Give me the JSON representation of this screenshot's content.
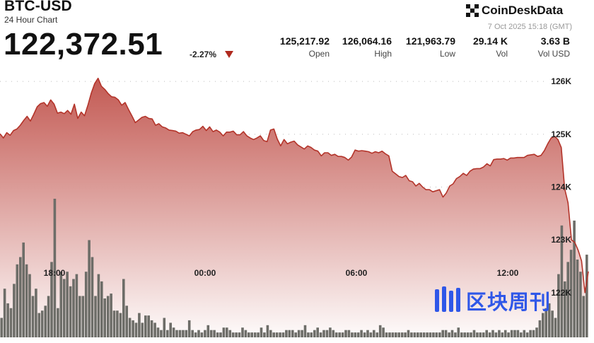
{
  "header": {
    "title": "BTC-USD",
    "subtitle": "24 Hour Chart",
    "price": "122,372.51",
    "change": "-2.27%",
    "change_direction_icon": "down-triangle-icon"
  },
  "brand": {
    "name": "CoinDeskData",
    "logo_icon": "coindesk-logo-icon",
    "timestamp": "7 Oct 2025 15:18 (GMT)"
  },
  "stats": [
    {
      "value": "125,217.92",
      "label": "Open"
    },
    {
      "value": "126,064.16",
      "label": "High"
    },
    {
      "value": "121,963.79",
      "label": "Low"
    },
    {
      "value": "29.14 K",
      "label": "Vol"
    },
    {
      "value": "3.63 B",
      "label": "Vol USD"
    }
  ],
  "watermark": {
    "text": "区块周刊",
    "icon": "qukuai-zhoukan-logo-icon"
  },
  "colors": {
    "line": "#b3342a",
    "area_top": "#c0514a",
    "area_bottom": "#ffffff",
    "volume_bar": "#6d6d68",
    "grid": "#bbbbbb",
    "down": "#b02a1f"
  },
  "chart_data": {
    "type": "area",
    "title": "BTC-USD",
    "subtitle": "24 Hour Chart",
    "x_labels": [
      "18:00",
      "00:00",
      "06:00",
      "12:00"
    ],
    "y_ticks": [
      122000,
      123000,
      124000,
      125000,
      126000
    ],
    "y_tick_labels": [
      "122K",
      "123K",
      "124K",
      "125K",
      "126K"
    ],
    "ylim": [
      121180,
      126190
    ],
    "grid": "horizontal dotted",
    "price_series": {
      "name": "Price",
      "values": [
        125010,
        124930,
        125030,
        124980,
        125070,
        125100,
        125170,
        125260,
        125340,
        125250,
        125380,
        125520,
        125580,
        125600,
        125530,
        125650,
        125570,
        125400,
        125420,
        125390,
        125450,
        125380,
        125570,
        125300,
        125420,
        125350,
        125550,
        125780,
        125960,
        126060,
        125910,
        125850,
        125770,
        125710,
        125700,
        125650,
        125550,
        125600,
        125470,
        125350,
        125220,
        125270,
        125320,
        125340,
        125300,
        125290,
        125170,
        125200,
        125140,
        125120,
        125080,
        125070,
        125060,
        125020,
        125030,
        125000,
        124970,
        125050,
        125080,
        125090,
        125150,
        125070,
        125140,
        125050,
        125080,
        125040,
        124970,
        125040,
        125040,
        125060,
        124990,
        124990,
        125050,
        124970,
        124930,
        124900,
        124930,
        124970,
        124880,
        124860,
        125080,
        125100,
        124910,
        124780,
        124900,
        124820,
        124850,
        124870,
        124800,
        124760,
        124720,
        124780,
        124750,
        124700,
        124680,
        124590,
        124650,
        124650,
        124600,
        124620,
        124580,
        124580,
        124560,
        124510,
        124570,
        124700,
        124680,
        124690,
        124680,
        124670,
        124640,
        124670,
        124650,
        124680,
        124630,
        124590,
        124300,
        124250,
        124200,
        124180,
        124220,
        124120,
        124100,
        124020,
        124070,
        124000,
        123950,
        123950,
        123910,
        123930,
        123950,
        123810,
        123890,
        124020,
        124060,
        124160,
        124200,
        124260,
        124220,
        124300,
        124340,
        124350,
        124350,
        124380,
        124440,
        124400,
        124520,
        124530,
        124530,
        124540,
        124510,
        124550,
        124550,
        124560,
        124560,
        124560,
        124600,
        124610,
        124620,
        124580,
        124600,
        124690,
        124820,
        124930,
        124960,
        124900,
        124750,
        123970,
        123700,
        123000,
        122950,
        122800,
        122600,
        122000,
        122400
      ]
    },
    "volume_series": {
      "name": "Volume",
      "values": [
        8,
        20,
        14,
        12,
        22,
        30,
        33,
        39,
        30,
        26,
        17,
        20,
        10,
        11,
        13,
        17,
        31,
        57,
        12,
        27,
        24,
        27,
        21,
        24,
        26,
        17,
        17,
        27,
        40,
        33,
        17,
        26,
        23,
        16,
        17,
        18,
        11,
        11,
        10,
        24,
        13,
        8,
        7,
        6,
        10,
        6,
        9,
        9,
        7,
        6,
        4,
        3,
        8,
        3,
        6,
        4,
        3,
        3,
        3,
        3,
        7,
        3,
        2,
        3,
        2,
        3,
        5,
        3,
        3,
        2,
        2,
        4,
        4,
        3,
        2,
        2,
        2,
        4,
        3,
        2,
        2,
        2,
        2,
        4,
        2,
        5,
        3,
        2,
        2,
        2,
        2,
        3,
        3,
        3,
        2,
        3,
        3,
        5,
        2,
        2,
        3,
        4,
        2,
        3,
        3,
        4,
        3,
        2,
        2,
        2,
        3,
        3,
        2,
        2,
        2,
        3,
        2,
        3,
        2,
        3,
        2,
        5,
        4,
        2,
        2,
        2,
        2,
        2,
        2,
        2,
        3,
        2,
        2,
        2,
        2,
        2,
        2,
        2,
        2,
        2,
        2,
        3,
        3,
        2,
        3,
        2,
        4,
        2,
        2,
        2,
        2,
        3,
        2,
        2,
        2,
        3,
        2,
        3,
        2,
        3,
        2,
        3,
        2,
        3,
        3,
        3,
        2,
        3,
        2,
        3,
        3,
        4,
        7,
        10,
        12,
        14,
        11,
        8,
        26,
        46,
        23,
        31,
        36,
        48,
        32,
        27,
        17,
        34
      ]
    }
  }
}
